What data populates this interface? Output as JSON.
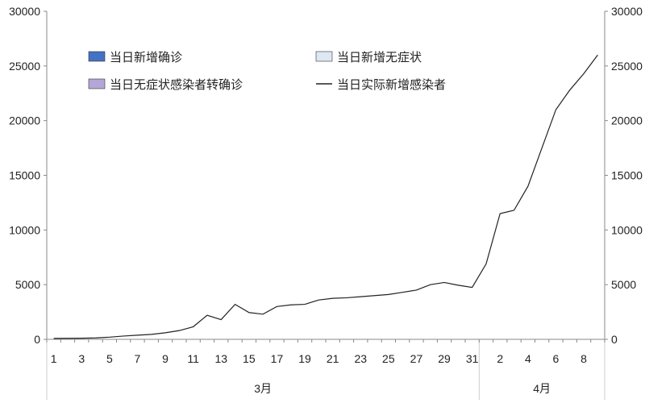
{
  "chart_data": {
    "type": "bar",
    "stacked": true,
    "categories": [
      "1",
      "2",
      "3",
      "4",
      "5",
      "6",
      "7",
      "8",
      "9",
      "10",
      "11",
      "12",
      "13",
      "14",
      "15",
      "16",
      "17",
      "18",
      "19",
      "20",
      "21",
      "22",
      "23",
      "24",
      "25",
      "26",
      "27",
      "28",
      "29",
      "30",
      "31",
      "1",
      "2",
      "3",
      "4",
      "5",
      "6",
      "7",
      "8",
      "9"
    ],
    "x_tick_labels": [
      "1",
      "3",
      "5",
      "7",
      "9",
      "11",
      "13",
      "15",
      "17",
      "19",
      "21",
      "23",
      "25",
      "27",
      "29",
      "31",
      "2",
      "4",
      "6",
      "8"
    ],
    "month_labels": [
      "3月",
      "4月"
    ],
    "series": [
      {
        "name": "当日新增确诊",
        "type": "bar",
        "axis": "left",
        "color": "#4472c4",
        "values": [
          0,
          0,
          0,
          0,
          0,
          0,
          0,
          0,
          0,
          0,
          0,
          0,
          0,
          0,
          0,
          0,
          0,
          0,
          0,
          0,
          0,
          0,
          0,
          0,
          0,
          0,
          0,
          0,
          0,
          0,
          0,
          0,
          0,
          0,
          0,
          0,
          0,
          0,
          0,
          0
        ]
      },
      {
        "name": "当日新增无症状",
        "type": "bar",
        "axis": "left",
        "color": "#dde8f3",
        "values": [
          0,
          0,
          0,
          0,
          0,
          0,
          0,
          0,
          0,
          0,
          0,
          0,
          0,
          0,
          0,
          0,
          0,
          0,
          0,
          0,
          0,
          0,
          0,
          0,
          0,
          0,
          0,
          0,
          0,
          0,
          0,
          0,
          0,
          0,
          0,
          0,
          0,
          0,
          0,
          0
        ]
      },
      {
        "name": "当日无症状感染者转确诊",
        "type": "bar",
        "axis": "left",
        "color": "#b4a7d6",
        "values": [
          0,
          0,
          0,
          0,
          0,
          0,
          0,
          0,
          0,
          0,
          0,
          0,
          0,
          0,
          0,
          0,
          0,
          0,
          0,
          0,
          0,
          0,
          0,
          0,
          0,
          0,
          0,
          0,
          0,
          0,
          0,
          0,
          0,
          0,
          0,
          0,
          0,
          0,
          0,
          0
        ]
      },
      {
        "name": "当日实际新增感染者",
        "type": "line",
        "axis": "right",
        "color": "#222222",
        "values": [
          80,
          90,
          100,
          130,
          200,
          300,
          380,
          450,
          600,
          800,
          1150,
          2200,
          1800,
          3200,
          2450,
          2300,
          3000,
          3150,
          3200,
          3600,
          3750,
          3800,
          3900,
          4000,
          4100,
          4300,
          4500,
          5000,
          5200,
          4950,
          4750,
          6900,
          11500,
          11800,
          14000,
          17500,
          21000,
          22800,
          24300,
          26000
        ]
      }
    ],
    "y_left": {
      "ticks": [
        "0",
        "5000",
        "10000",
        "15000",
        "20000",
        "25000",
        "30000"
      ],
      "min": 0,
      "max": 30000
    },
    "y_right": {
      "ticks": [
        "0",
        "5000",
        "10000",
        "15000",
        "20000",
        "25000",
        "30000"
      ],
      "min": 0,
      "max": 30000
    },
    "legend": {
      "placement": "top-left"
    }
  }
}
